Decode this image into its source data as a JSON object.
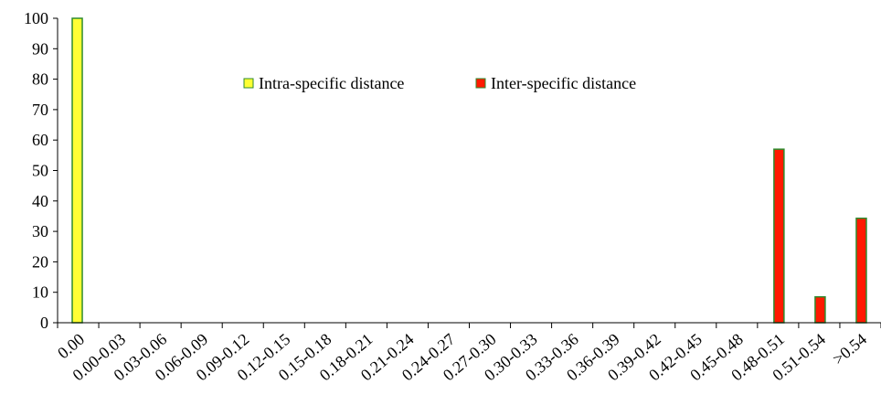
{
  "chart_data": {
    "type": "bar",
    "categories": [
      "0.00",
      "0.00-0.03",
      "0.03-0.06",
      "0.06-0.09",
      "0.09-0.12",
      "0.12-0.15",
      "0.15-0.18",
      "0.18-0.21",
      "0.21-0.24",
      "0.24-0.27",
      "0.27-0.30",
      "0.30-0.33",
      "0.33-0.36",
      "0.36-0.39",
      "0.39-0.42",
      "0.42-0.45",
      "0.45-0.48",
      "0.48-0.51",
      "0.51-0.54",
      ">0.54"
    ],
    "series": [
      {
        "name": "Intra-specific distance",
        "color": "#ffff33",
        "values": [
          100,
          0,
          0,
          0,
          0,
          0,
          0,
          0,
          0,
          0,
          0,
          0,
          0,
          0,
          0,
          0,
          0,
          0,
          0,
          0
        ]
      },
      {
        "name": "Inter-specific distance",
        "color": "#ff1a00",
        "values": [
          0,
          0,
          0,
          0,
          0,
          0,
          0,
          0,
          0,
          0,
          0,
          0,
          0,
          0,
          0,
          0,
          0,
          57,
          8.5,
          34.3
        ]
      }
    ],
    "bar_outline_color": "#2e8b2e",
    "ylim": [
      0,
      100
    ],
    "yticks": [
      0,
      10,
      20,
      30,
      40,
      50,
      60,
      70,
      80,
      90,
      100
    ],
    "grid": false,
    "legend_position": "top-center",
    "title": "",
    "xlabel": "",
    "ylabel": ""
  }
}
